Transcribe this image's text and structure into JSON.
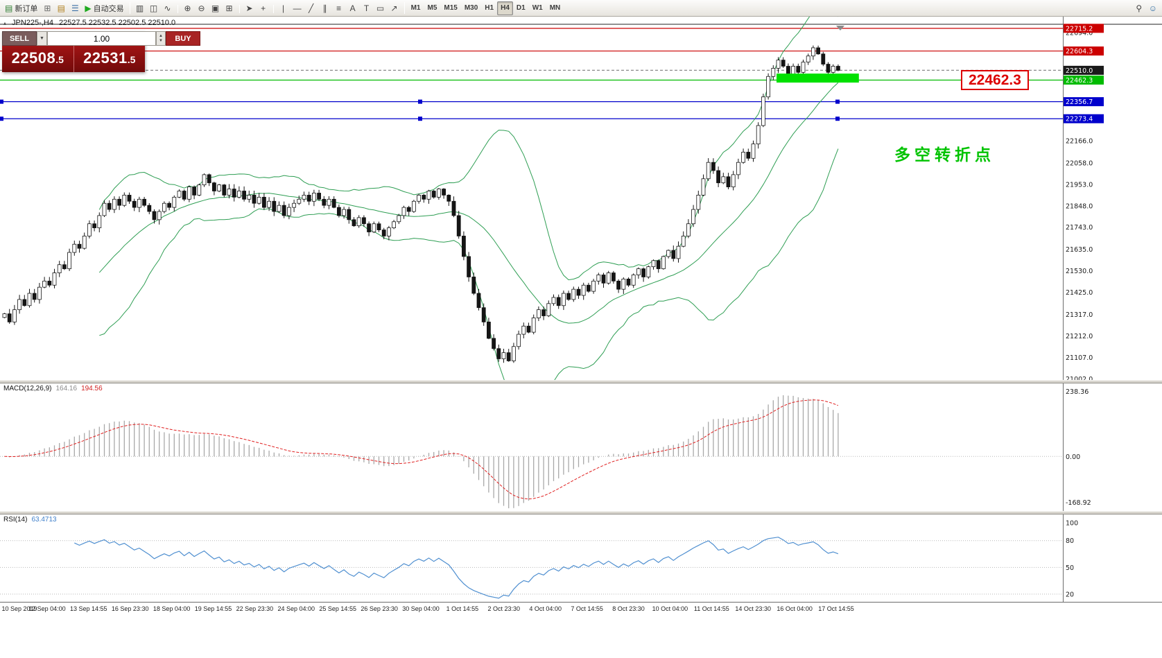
{
  "toolbar": {
    "new_order": "新订单",
    "auto_trading": "自动交易",
    "icons_left": [
      {
        "name": "charts-grid-icon",
        "glyph": "⊞",
        "color": "#6a6a6a"
      },
      {
        "name": "profiles-icon",
        "glyph": "▤",
        "color": "#b08020"
      },
      {
        "name": "market-watch-icon",
        "glyph": "☰",
        "color": "#3a6ea5"
      }
    ],
    "icons_mid": [
      {
        "name": "bar-chart-icon",
        "glyph": "▥",
        "color": "#444444"
      },
      {
        "name": "candlestick-chart-icon",
        "glyph": "◫",
        "color": "#444444"
      },
      {
        "name": "line-chart-icon",
        "glyph": "∿",
        "color": "#444444"
      },
      {
        "sep": true
      },
      {
        "name": "zoom-in-icon",
        "glyph": "⊕",
        "color": "#444444"
      },
      {
        "name": "zoom-out-icon",
        "glyph": "⊖",
        "color": "#444444"
      },
      {
        "name": "auto-arrange-icon",
        "glyph": "▣",
        "color": "#444444"
      },
      {
        "name": "tile-windows-icon",
        "glyph": "⊞",
        "color": "#444444"
      },
      {
        "sep": true
      },
      {
        "name": "cursor-icon",
        "glyph": "➤",
        "color": "#444444"
      },
      {
        "name": "crosshair-icon",
        "glyph": "+",
        "color": "#444444"
      },
      {
        "sep": true
      },
      {
        "name": "vertical-line-icon",
        "glyph": "|",
        "color": "#444444"
      },
      {
        "name": "horizontal-line-icon",
        "glyph": "―",
        "color": "#444444"
      },
      {
        "name": "trendline-icon",
        "glyph": "╱",
        "color": "#444444"
      },
      {
        "name": "channel-icon",
        "glyph": "∥",
        "color": "#444444"
      },
      {
        "name": "fibonacci-icon",
        "glyph": "≡",
        "color": "#444444"
      },
      {
        "name": "text-icon",
        "glyph": "A",
        "color": "#444444"
      },
      {
        "name": "label-icon",
        "glyph": "T",
        "color": "#444444"
      },
      {
        "name": "shapes-icon",
        "glyph": "▭",
        "color": "#444444"
      },
      {
        "name": "arrows-icon",
        "glyph": "↗",
        "color": "#444444"
      }
    ],
    "timeframes": [
      "M1",
      "M5",
      "M15",
      "M30",
      "H1",
      "H4",
      "D1",
      "W1",
      "MN"
    ],
    "active_timeframe": "H4",
    "icons_right": [
      {
        "name": "search-icon",
        "glyph": "⚲",
        "color": "#444444"
      },
      {
        "name": "help-icon",
        "glyph": "☺",
        "color": "#2e6da4"
      }
    ]
  },
  "icons": {
    "collapse": "▴",
    "dropdown": "▼",
    "spin_up": "▲",
    "spin_down": "▼",
    "play": "▶",
    "new_order_sheet": "▤"
  },
  "chart": {
    "header": {
      "symbol": "JPN225-,H4",
      "ohlc": "22527.5 22532.5 22502.5 22510.0"
    },
    "big_label": "22462.3",
    "annotation": "多空转折点"
  },
  "trade_panel": {
    "sell_label": "SELL",
    "buy_label": "BUY",
    "volume": "1.00",
    "sell_price": {
      "main": "22508",
      "frac": ".5"
    },
    "buy_price": {
      "main": "22531",
      "frac": ".5"
    }
  },
  "macd": {
    "name": "MACD(12,26,9)",
    "main_value": "164.16",
    "signal_value": "194.56",
    "axis": [
      "238.36",
      "0.00",
      "-168.92"
    ]
  },
  "rsi": {
    "name": "RSI(14)",
    "value": "63.4713",
    "axis": [
      "100",
      "80",
      "50",
      "20"
    ],
    "levels": [
      80,
      50,
      20
    ]
  },
  "chart_data": {
    "type": "candlestick",
    "symbol": "JPN225-",
    "timeframe": "H4",
    "last_price": 22510.0,
    "indicators": {
      "bollinger": {
        "period": 20,
        "deviation": 2
      },
      "macd": {
        "fast": 12,
        "slow": 26,
        "signal": 9
      },
      "rsi": {
        "period": 14
      }
    },
    "price_range": {
      "max": 22735,
      "min": 21000
    },
    "closes": [
      21320,
      21280,
      21340,
      21390,
      21360,
      21420,
      21390,
      21450,
      21480,
      21460,
      21520,
      21560,
      21540,
      21620,
      21660,
      21640,
      21700,
      21760,
      21740,
      21800,
      21860,
      21830,
      21880,
      21850,
      21900,
      21870,
      21840,
      21880,
      21850,
      21820,
      21780,
      21820,
      21860,
      21840,
      21890,
      21920,
      21880,
      21940,
      21900,
      21950,
      22000,
      21960,
      21920,
      21950,
      21900,
      21930,
      21890,
      21920,
      21880,
      21900,
      21860,
      21890,
      21840,
      21870,
      21820,
      21850,
      21800,
      21840,
      21860,
      21880,
      21900,
      21870,
      21910,
      21880,
      21850,
      21880,
      21840,
      21800,
      21830,
      21780,
      21750,
      21790,
      21760,
      21720,
      21760,
      21730,
      21700,
      21740,
      21770,
      21800,
      21840,
      21820,
      21870,
      21900,
      21880,
      21920,
      21890,
      21930,
      21900,
      21870,
      21800,
      21700,
      21600,
      21500,
      21420,
      21350,
      21280,
      21200,
      21150,
      21100,
      21130,
      21090,
      21160,
      21220,
      21260,
      21230,
      21300,
      21340,
      21310,
      21370,
      21400,
      21360,
      21420,
      21390,
      21440,
      21410,
      21460,
      21430,
      21480,
      21510,
      21470,
      21520,
      21480,
      21440,
      21490,
      21460,
      21510,
      21540,
      21500,
      21550,
      21580,
      21540,
      21600,
      21630,
      21590,
      21650,
      21700,
      21760,
      21830,
      21900,
      21980,
      22060,
      22020,
      21960,
      21990,
      21940,
      22000,
      22060,
      22110,
      22080,
      22150,
      22240,
      22380,
      22480,
      22520,
      22560,
      22530,
      22490,
      22530,
      22500,
      22550,
      22580,
      22620,
      22590,
      22540,
      22500,
      22530,
      22510
    ],
    "levels": [
      {
        "label": "22715.2",
        "price": 22715.2,
        "color": "#cc0000",
        "style": "solid"
      },
      {
        "label": "22604.3",
        "price": 22604.3,
        "color": "#cc0000",
        "style": "solid"
      },
      {
        "label": "22510.0",
        "price": 22510.0,
        "color": "#888888",
        "style": "dash",
        "badge": "#1a1a1a"
      },
      {
        "label": "22462.3",
        "price": 22462.3,
        "color": "#00bb00",
        "style": "solid"
      },
      {
        "label": "22356.7",
        "price": 22356.7,
        "color": "#0000cc",
        "style": "solid",
        "handles": true
      },
      {
        "label": "22273.4",
        "price": 22273.4,
        "color": "#0000cc",
        "style": "solid",
        "handles": true
      }
    ],
    "price_ticks": [
      "22694.0",
      "22166.0",
      "22058.0",
      "21953.0",
      "21848.0",
      "21743.0",
      "21635.0",
      "21530.0",
      "21425.0",
      "21317.0",
      "21212.0",
      "21107.0",
      "21002.0"
    ],
    "highlight": {
      "from_bar": 155,
      "to_bar": 171.5,
      "price_top": 22494,
      "price_bottom": 22450,
      "color": "#00e100"
    },
    "time_labels": [
      "10 Sep 2019",
      "12 Sep 04:00",
      "13 Sep 14:55",
      "16 Sep 23:30",
      "18 Sep 04:00",
      "19 Sep 14:55",
      "22 Sep 23:30",
      "24 Sep 04:00",
      "25 Sep 14:55",
      "26 Sep 23:30",
      "30 Sep 04:00",
      "1 Oct 14:55",
      "2 Oct 23:30",
      "4 Oct 04:00",
      "7 Oct 14:55",
      "8 Oct 23:30",
      "10 Oct 04:00",
      "11 Oct 14:55",
      "14 Oct 23:30",
      "16 Oct 04:00",
      "17 Oct 14:55"
    ]
  }
}
